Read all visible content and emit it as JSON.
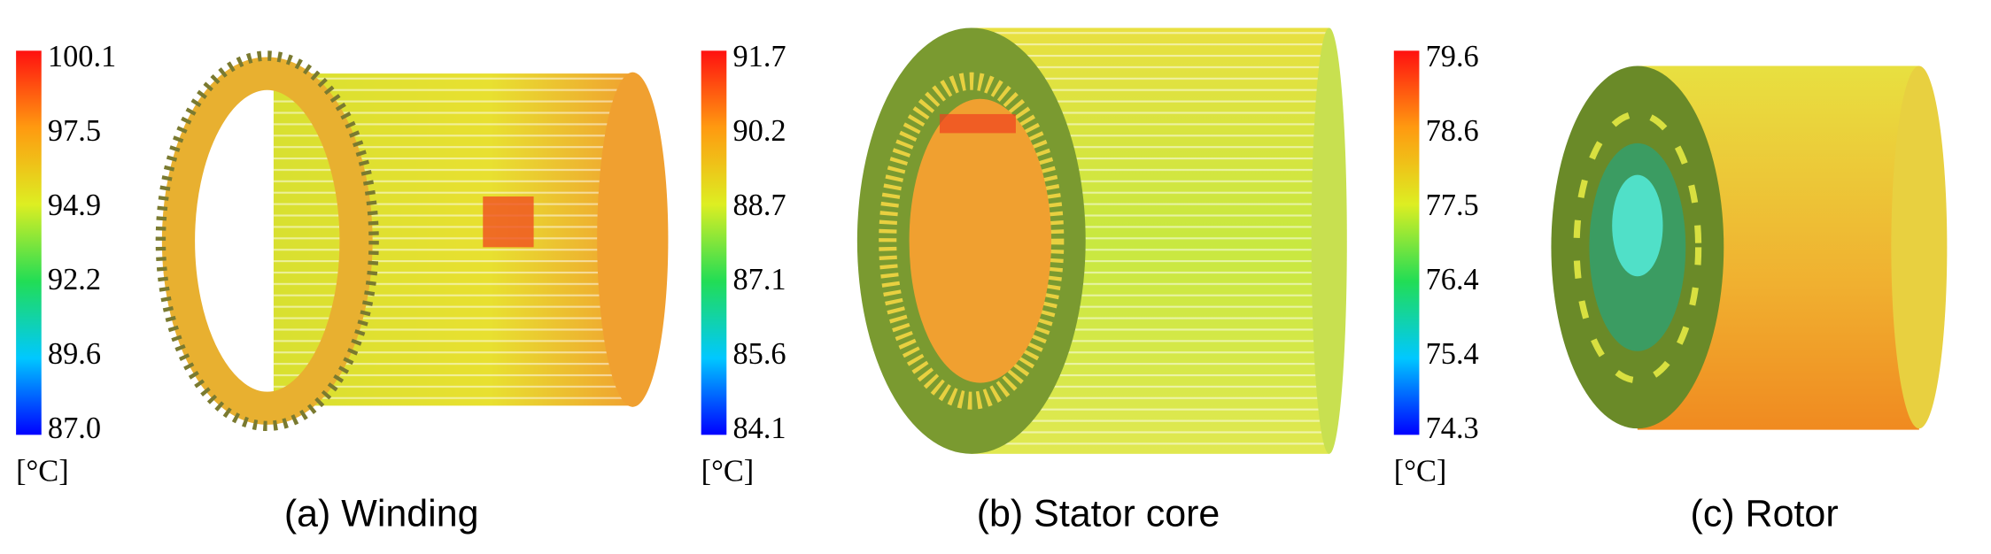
{
  "panels": [
    {
      "caption": "(a) Winding",
      "unit": "[°C]",
      "scale_labels": [
        "100.1",
        "97.5",
        "94.9",
        "92.2",
        "89.6",
        "87.0"
      ]
    },
    {
      "caption": "(b) Stator core",
      "unit": "[°C]",
      "scale_labels": [
        "91.7",
        "90.2",
        "88.7",
        "87.1",
        "85.6",
        "84.1"
      ]
    },
    {
      "caption": "(c) Rotor",
      "unit": "[°C]",
      "scale_labels": [
        "79.6",
        "78.6",
        "77.5",
        "76.4",
        "75.4",
        "74.3"
      ]
    }
  ]
}
